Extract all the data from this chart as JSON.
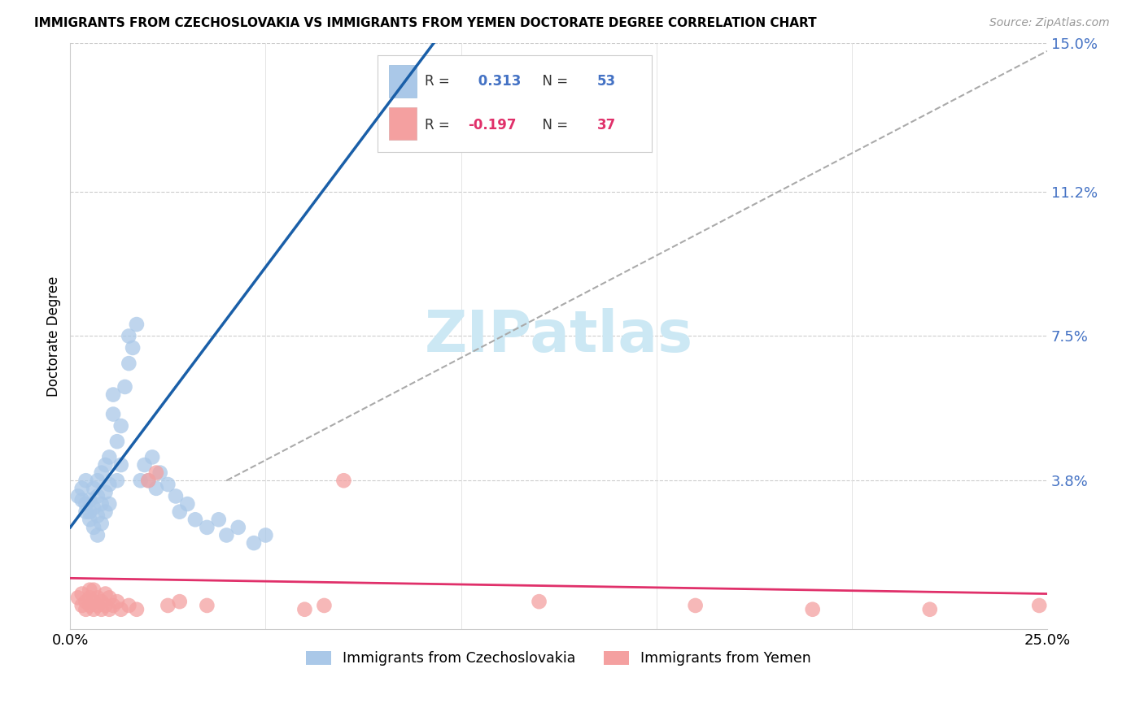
{
  "title": "IMMIGRANTS FROM CZECHOSLOVAKIA VS IMMIGRANTS FROM YEMEN DOCTORATE DEGREE CORRELATION CHART",
  "source": "Source: ZipAtlas.com",
  "ylabel": "Doctorate Degree",
  "xlim": [
    0.0,
    0.25
  ],
  "ylim": [
    0.0,
    0.15
  ],
  "ytick_vals": [
    0.038,
    0.075,
    0.112,
    0.15
  ],
  "ytick_labels": [
    "3.8%",
    "7.5%",
    "11.2%",
    "15.0%"
  ],
  "blue_R": "0.313",
  "blue_N": "53",
  "pink_R": "-0.197",
  "pink_N": "37",
  "blue_label": "Immigrants from Czechoslovakia",
  "pink_label": "Immigrants from Yemen",
  "blue_dot_color": "#aac8e8",
  "pink_dot_color": "#f4a0a0",
  "blue_line_color": "#1a5fa8",
  "pink_line_color": "#e0306a",
  "gray_dash_color": "#aaaaaa",
  "background_color": "#ffffff",
  "blue_x": [
    0.002,
    0.003,
    0.003,
    0.004,
    0.004,
    0.004,
    0.005,
    0.005,
    0.005,
    0.006,
    0.006,
    0.006,
    0.007,
    0.007,
    0.007,
    0.007,
    0.008,
    0.008,
    0.008,
    0.009,
    0.009,
    0.009,
    0.01,
    0.01,
    0.01,
    0.011,
    0.011,
    0.012,
    0.012,
    0.013,
    0.013,
    0.014,
    0.015,
    0.015,
    0.016,
    0.017,
    0.018,
    0.019,
    0.02,
    0.021,
    0.022,
    0.023,
    0.025,
    0.027,
    0.028,
    0.03,
    0.032,
    0.035,
    0.038,
    0.04,
    0.043,
    0.047,
    0.05
  ],
  "blue_y": [
    0.034,
    0.033,
    0.036,
    0.03,
    0.032,
    0.038,
    0.028,
    0.03,
    0.033,
    0.026,
    0.031,
    0.036,
    0.024,
    0.029,
    0.034,
    0.038,
    0.027,
    0.032,
    0.04,
    0.03,
    0.035,
    0.042,
    0.032,
    0.037,
    0.044,
    0.055,
    0.06,
    0.038,
    0.048,
    0.042,
    0.052,
    0.062,
    0.068,
    0.075,
    0.072,
    0.078,
    0.038,
    0.042,
    0.038,
    0.044,
    0.036,
    0.04,
    0.037,
    0.034,
    0.03,
    0.032,
    0.028,
    0.026,
    0.028,
    0.024,
    0.026,
    0.022,
    0.024
  ],
  "pink_x": [
    0.002,
    0.003,
    0.003,
    0.004,
    0.004,
    0.005,
    0.005,
    0.005,
    0.006,
    0.006,
    0.006,
    0.007,
    0.007,
    0.008,
    0.008,
    0.009,
    0.009,
    0.01,
    0.01,
    0.011,
    0.012,
    0.013,
    0.015,
    0.017,
    0.02,
    0.022,
    0.025,
    0.028,
    0.035,
    0.06,
    0.065,
    0.07,
    0.12,
    0.16,
    0.19,
    0.22,
    0.248
  ],
  "pink_y": [
    0.008,
    0.006,
    0.009,
    0.005,
    0.007,
    0.006,
    0.008,
    0.01,
    0.005,
    0.007,
    0.01,
    0.006,
    0.008,
    0.005,
    0.007,
    0.006,
    0.009,
    0.005,
    0.008,
    0.006,
    0.007,
    0.005,
    0.006,
    0.005,
    0.038,
    0.04,
    0.006,
    0.007,
    0.006,
    0.005,
    0.006,
    0.038,
    0.007,
    0.006,
    0.005,
    0.005,
    0.006
  ],
  "blue_line_x0": 0.0,
  "blue_line_y0": 0.026,
  "blue_line_x1": 0.048,
  "blue_line_y1": 0.09,
  "pink_line_x0": 0.0,
  "pink_line_y0": 0.013,
  "pink_line_x1": 0.25,
  "pink_line_y1": 0.009,
  "gray_line_x0": 0.04,
  "gray_line_y0": 0.038,
  "gray_line_x1": 0.25,
  "gray_line_y1": 0.148
}
